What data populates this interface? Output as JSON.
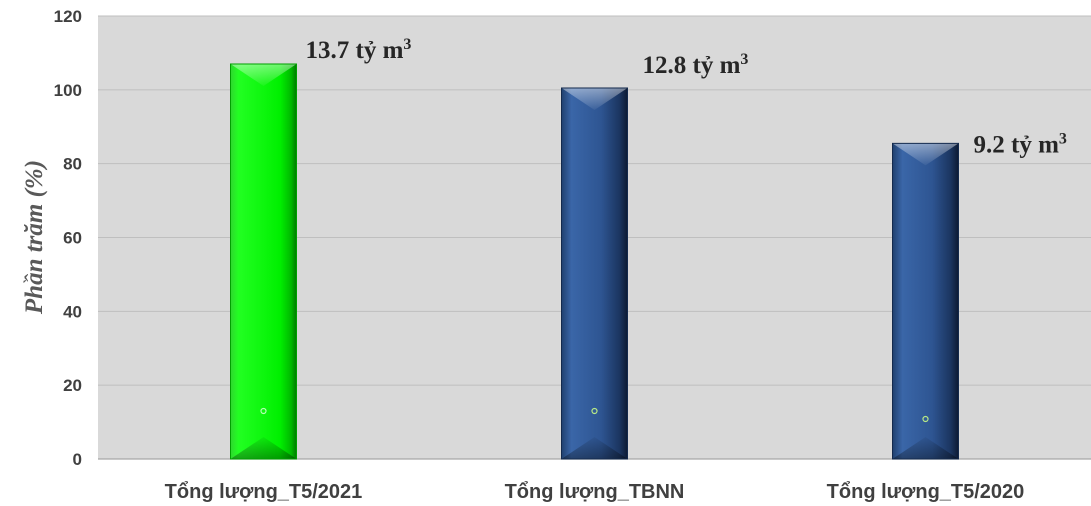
{
  "chart_data": {
    "type": "bar",
    "ylabel": "Phần trăm (%)",
    "xlabel": "",
    "title": "",
    "ylim": [
      0,
      120
    ],
    "yticks": [
      "0",
      "20",
      "40",
      "60",
      "80",
      "100",
      "120"
    ],
    "grid": true,
    "legend": "none",
    "categories": [
      "Tổng lượng_T5/2021",
      "Tổng lượng_TBNN",
      "Tổng lượng_T5/2020"
    ],
    "values": [
      107,
      100.5,
      85.5
    ],
    "data_labels": [
      {
        "text": "13.7 tỷ m",
        "sup": "3"
      },
      {
        "text": "12.8 tỷ m",
        "sup": "3"
      },
      {
        "text": "9.2 tỷ m",
        "sup": "3"
      }
    ],
    "bar_colors": [
      "#00ff00",
      "#2f5597",
      "#2f5597"
    ],
    "plot_background": "#d9d9d9"
  }
}
